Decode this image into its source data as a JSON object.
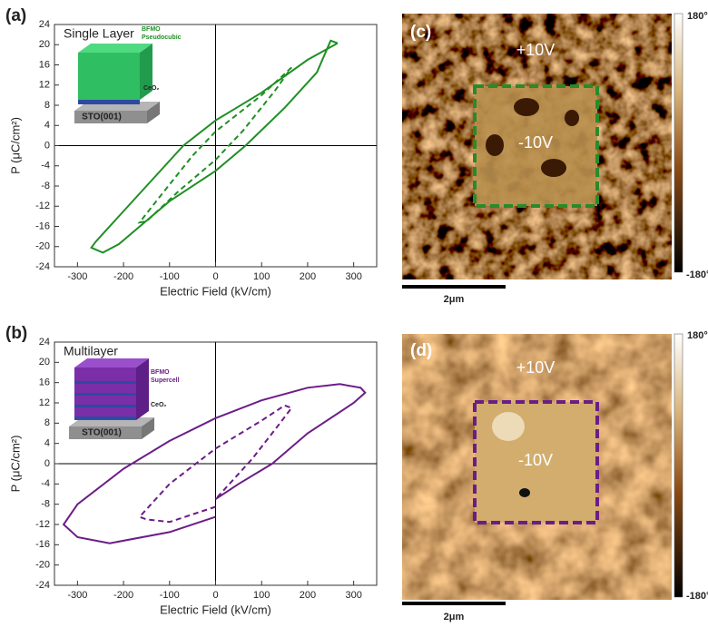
{
  "chart_data": [
    {
      "type": "line",
      "panel_label": "(a)",
      "title": "Single Layer",
      "x_label": "Electric Field (kV/cm)",
      "y_label": "P (μC/cm²)",
      "inset_labels": [
        "BFMO",
        "Pseudocubic",
        "CeO₂",
        "STO(001)"
      ],
      "xlim": [
        -350,
        350
      ],
      "xticks": [
        -300,
        -200,
        -100,
        0,
        100,
        200,
        300
      ],
      "ylim": [
        -24,
        24
      ],
      "yticks": [
        -24,
        -20,
        -16,
        -12,
        -8,
        -4,
        0,
        4,
        8,
        12,
        16,
        20,
        24
      ],
      "series": [
        {
          "color": "#1f8f24",
          "line_style": "solid",
          "x": [
            265,
            200,
            100,
            0,
            -70,
            -150,
            -220,
            -260,
            -270,
            -245,
            -210,
            -100,
            0,
            65,
            150,
            220,
            250,
            265
          ],
          "values": [
            20.3,
            17,
            10.5,
            5,
            0,
            -8,
            -15,
            -19,
            -20.2,
            -21.2,
            -19.5,
            -11,
            -5,
            0,
            7.5,
            14.5,
            20.8,
            20.3
          ]
        },
        {
          "color": "#1f8f24",
          "line_style": "dashed",
          "x": [
            165,
            100,
            0,
            -50,
            -120,
            -165,
            -150,
            -80,
            0,
            60,
            130,
            165
          ],
          "values": [
            15.5,
            10,
            2.8,
            -2,
            -10,
            -15.2,
            -15,
            -9,
            -2.8,
            3,
            11,
            15.5
          ]
        }
      ]
    },
    {
      "type": "line",
      "panel_label": "(b)",
      "title": "Multilayer",
      "x_label": "Electric Field (kV/cm)",
      "y_label": "P (μC/cm²)",
      "inset_labels": [
        "BFMO",
        "Supercell",
        "CeO₂",
        "STO(001)"
      ],
      "xlim": [
        -350,
        350
      ],
      "xticks": [
        -300,
        -200,
        -100,
        0,
        100,
        200,
        300
      ],
      "ylim": [
        -24,
        24
      ],
      "yticks": [
        -24,
        -20,
        -16,
        -12,
        -8,
        -4,
        0,
        4,
        8,
        12,
        16,
        20,
        24
      ],
      "series": [
        {
          "color": "#6b1d86",
          "line_style": "solid",
          "x": [
            0,
            -100,
            -230,
            -300,
            -330,
            -300,
            -200,
            -100,
            0,
            100,
            200,
            270,
            315,
            325,
            300,
            200,
            123,
            50,
            0
          ],
          "values": [
            -10.5,
            -13.5,
            -15.7,
            -14.5,
            -12,
            -8,
            -1,
            4.5,
            9,
            12.5,
            15,
            15.7,
            15,
            14,
            12,
            6,
            0,
            -4,
            -7
          ]
        },
        {
          "color": "#6b1d86",
          "line_style": "dashed",
          "x": [
            0,
            -100,
            -150,
            -165,
            -100,
            0,
            100,
            150,
            165,
            140,
            80,
            0
          ],
          "values": [
            -8.5,
            -11.5,
            -11,
            -10.5,
            -4,
            3,
            8.5,
            11.5,
            11,
            8,
            1,
            -7
          ]
        }
      ]
    }
  ],
  "images": [
    {
      "panel_label": "(c)",
      "outer_label": "+10V",
      "inner_label": "-10V",
      "scale_bar": "2μm",
      "colorbar_max": "180°",
      "colorbar_min": "-180°"
    },
    {
      "panel_label": "(d)",
      "outer_label": "+10V",
      "inner_label": "-10V",
      "scale_bar": "2μm",
      "colorbar_max": "180°",
      "colorbar_min": "-180°"
    }
  ]
}
